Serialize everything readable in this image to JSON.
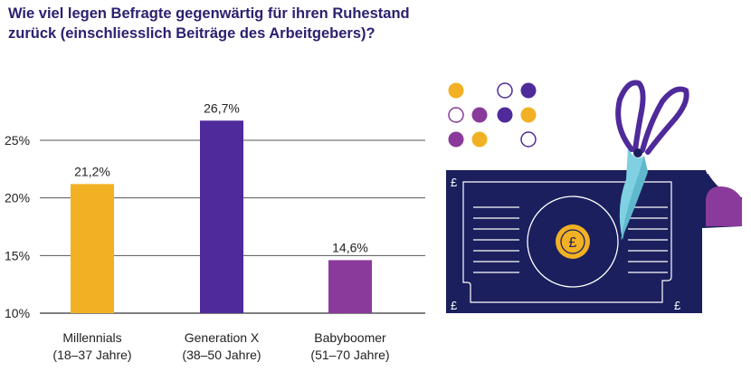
{
  "title_lines": [
    "Wie viel legen Befragte gegenwärtig für ihren Ruhestand",
    "zurück (einschliesslich Beiträge des Arbeitgebers)?"
  ],
  "chart_data": {
    "type": "bar",
    "title": "Wie viel legen Befragte gegenwärtig für ihren Ruhestand zurück (einschliesslich Beiträge des Arbeitgebers)?",
    "categories": [
      [
        "Millennials",
        "(18–37 Jahre)"
      ],
      [
        "Generation X",
        "(38–50 Jahre)"
      ],
      [
        "Babyboomer",
        "(51–70 Jahre)"
      ]
    ],
    "values": [
      21.2,
      26.7,
      14.6
    ],
    "value_labels": [
      "21,2%",
      "26,7%",
      "14,6%"
    ],
    "bar_colors": [
      "#f2b124",
      "#4f2a9a",
      "#8a3a9a"
    ],
    "yticks": [
      10,
      15,
      20,
      25
    ],
    "ytick_labels": [
      "10%",
      "15%",
      "20%",
      "25%"
    ],
    "ylim": [
      10,
      27.9
    ],
    "xlabel": "",
    "ylabel": "",
    "grid": true,
    "legend": "none"
  },
  "illustration": {
    "currency_symbol": "£",
    "colors": {
      "navy": "#1b1f5e",
      "gold": "#f2b124",
      "purple": "#4f2a9a",
      "magenta": "#8a3a9a",
      "light_blue": "#7fd0e0"
    },
    "icons": [
      "banknote-icon",
      "scissors-icon",
      "coin-icon"
    ]
  }
}
